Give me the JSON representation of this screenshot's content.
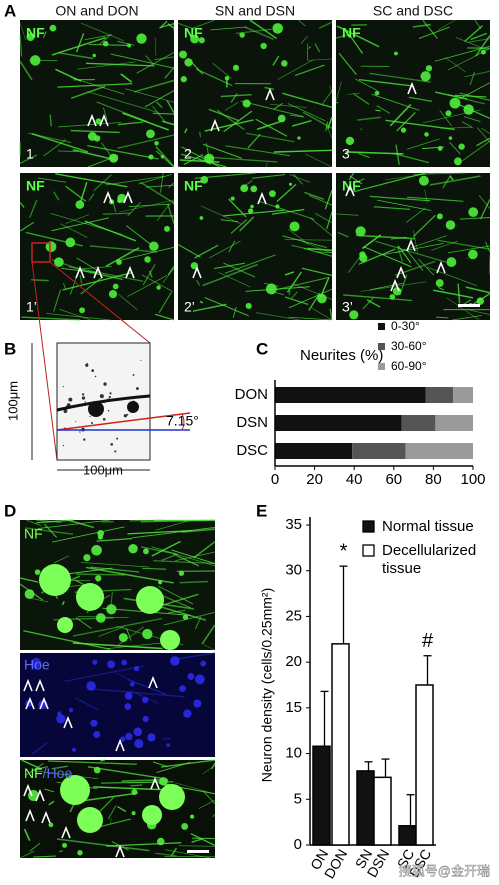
{
  "panel_A": {
    "label": "A",
    "column_titles": [
      "ON and DON",
      "SN and DSN",
      "SC and DSC"
    ],
    "images": [
      {
        "stain": "NF",
        "number": "1"
      },
      {
        "stain": "NF",
        "number": "2"
      },
      {
        "stain": "NF",
        "number": "3"
      },
      {
        "stain": "NF",
        "number": "1’"
      },
      {
        "stain": "NF",
        "number": "2’"
      },
      {
        "stain": "NF",
        "number": "3’"
      }
    ]
  },
  "panel_B": {
    "label": "B",
    "y_scale": "100μm",
    "x_scale": "100μm",
    "angle": "7.15°"
  },
  "panel_D": {
    "label": "D",
    "stains": [
      "NF",
      "Hoe"
    ],
    "merge_label": [
      "NF",
      "/Hoe"
    ]
  },
  "chart_data": [
    {
      "type": "stacked-barh",
      "label": "C",
      "title": "Neurites (%)",
      "categories": [
        "DON",
        "DSN",
        "DSC"
      ],
      "series": [
        {
          "name": "0-30°",
          "color": "#111111",
          "values": [
            76,
            64,
            39
          ]
        },
        {
          "name": "30-60°",
          "color": "#555555",
          "values": [
            14,
            17,
            27
          ]
        },
        {
          "name": "60-90°",
          "color": "#9a9a9a",
          "values": [
            10,
            19,
            34
          ]
        }
      ],
      "xlim": [
        0,
        100
      ],
      "xticks": [
        0,
        20,
        40,
        60,
        80,
        100
      ],
      "legend": "top-right"
    },
    {
      "type": "bar",
      "label": "E",
      "y_label": "Neuron density (cells/0.25mm²)",
      "categories": [
        "ON",
        "DON",
        "SN",
        "DSN",
        "SC",
        "DSC"
      ],
      "series": [
        {
          "name": "Normal tissue",
          "color": "#111111",
          "values": [
            10.8,
            null,
            8.1,
            null,
            2.1,
            null
          ],
          "errors": [
            6,
            null,
            1,
            null,
            3.4,
            null
          ]
        },
        {
          "name": "Decellularized tissue",
          "color": "#ffffff",
          "values": [
            null,
            22,
            null,
            7.4,
            null,
            17.5
          ],
          "errors": [
            null,
            8.5,
            null,
            2,
            null,
            3.2
          ]
        }
      ],
      "annotations": [
        {
          "category": 1,
          "text": "*"
        },
        {
          "category": 5,
          "text": "#"
        }
      ],
      "ylim": [
        0,
        35
      ],
      "yticks": [
        0,
        5,
        10,
        15,
        20,
        25,
        30,
        35
      ],
      "legend": "top-right"
    }
  ],
  "watermark": "搜狐号@金开瑞"
}
